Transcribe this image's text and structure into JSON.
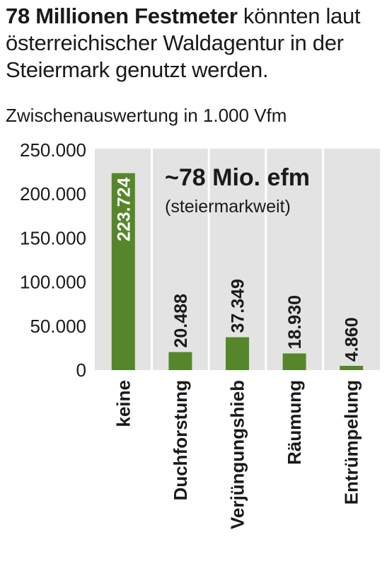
{
  "header": {
    "title_bold": "78 Millionen Festmeter",
    "title_rest": " könnten laut österreichischer Waldagentur in der Steiermark genutzt werden.",
    "subtitle": "Zwischenauswertung in 1.000 Vfm"
  },
  "chart_data": {
    "type": "bar",
    "title": "78 Millionen Festmeter könnten laut österreichischer Waldagentur in der Steiermark genutzt werden.",
    "subtitle": "Zwischenauswertung in 1.000 Vfm",
    "categories": [
      "keine",
      "Duchforstung",
      "Verjüngungshieb",
      "Räumung",
      "Entrümpelung"
    ],
    "values": [
      223724,
      20488,
      37349,
      18930,
      4860
    ],
    "value_labels": [
      "223.724",
      "20.488",
      "37.349",
      "18.930",
      "4.860"
    ],
    "y_ticks": [
      0,
      50000,
      100000,
      150000,
      200000,
      250000
    ],
    "y_tick_labels": [
      "0",
      "50.000",
      "100.000",
      "150.000",
      "200.000",
      "250.000"
    ],
    "ylim": [
      0,
      250000
    ],
    "grid": false,
    "annotation": {
      "main": "~78 Mio. efm",
      "sub": "(steiermarkweit)"
    },
    "colors": {
      "bar": "#55872a",
      "plot_bg": "#e3e3e3",
      "separator": "#ffffff",
      "label_inside": "#ffffff",
      "label_outside": "#1a1a1a"
    }
  }
}
